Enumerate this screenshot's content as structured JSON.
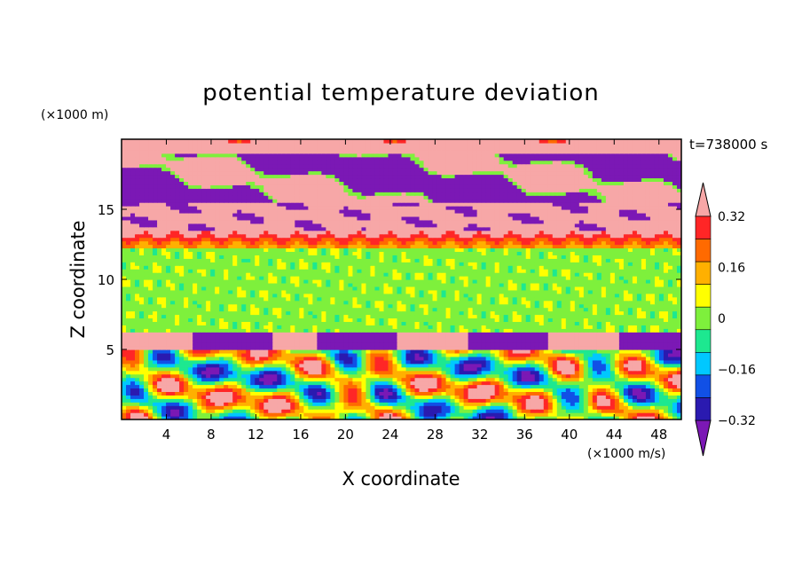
{
  "chart_data": {
    "type": "heatmap",
    "title": "potential temperature deviation",
    "xlabel": "X coordinate",
    "ylabel": "Z coordinate",
    "x_unit": "(×1000 m/s)",
    "y_unit": "(×1000 m)",
    "time_label": "t=738000 s",
    "xlim": [
      0,
      50
    ],
    "ylim": [
      0,
      20
    ],
    "x_ticks": [
      4,
      8,
      12,
      16,
      20,
      24,
      28,
      32,
      36,
      40,
      44,
      48
    ],
    "y_ticks": [
      5,
      10,
      15
    ],
    "colorbar": {
      "levels": [
        -0.4,
        -0.32,
        -0.24,
        -0.16,
        -0.08,
        0,
        0.08,
        0.16,
        0.24,
        0.32,
        0.4
      ],
      "labels": [
        "0.32",
        "0.16",
        "0",
        "−0.16",
        "−0.32"
      ],
      "label_values": [
        0.32,
        0.16,
        0,
        -0.16,
        -0.32
      ],
      "colors": [
        "#7b18b5",
        "#2a1ab0",
        "#1150e6",
        "#00c8ff",
        "#1de890",
        "#7ef03c",
        "#ffff00",
        "#ffb000",
        "#ff6a00",
        "#ff2626",
        "#f7a7a7"
      ],
      "extend": "both"
    },
    "bands": [
      {
        "z_range": [
          19.0,
          20.0
        ],
        "dominant_value": 0.44,
        "description": "pink top"
      },
      {
        "z_range": [
          15.5,
          19.0
        ],
        "dominant_value": -0.44,
        "description": "violet / pink layered"
      },
      {
        "z_range": [
          13.5,
          15.5
        ],
        "dominant_value": 0.44,
        "description": "pink with violet blobs"
      },
      {
        "z_range": [
          12.3,
          13.5
        ],
        "dominant_value": 0.3,
        "description": "red-orange-yellow stripes"
      },
      {
        "z_range": [
          6.3,
          12.3
        ],
        "dominant_value": 0.0,
        "description": "green / light-green"
      },
      {
        "z_range": [
          5.0,
          6.3
        ],
        "dominant_value": 0.44,
        "description": "pink and violet"
      },
      {
        "z_range": [
          0.0,
          5.0
        ],
        "dominant_value": 0.0,
        "description": "mixed turbulent eddies"
      }
    ]
  },
  "colors": {
    "background": "#ffffff",
    "axis": "#000000"
  }
}
